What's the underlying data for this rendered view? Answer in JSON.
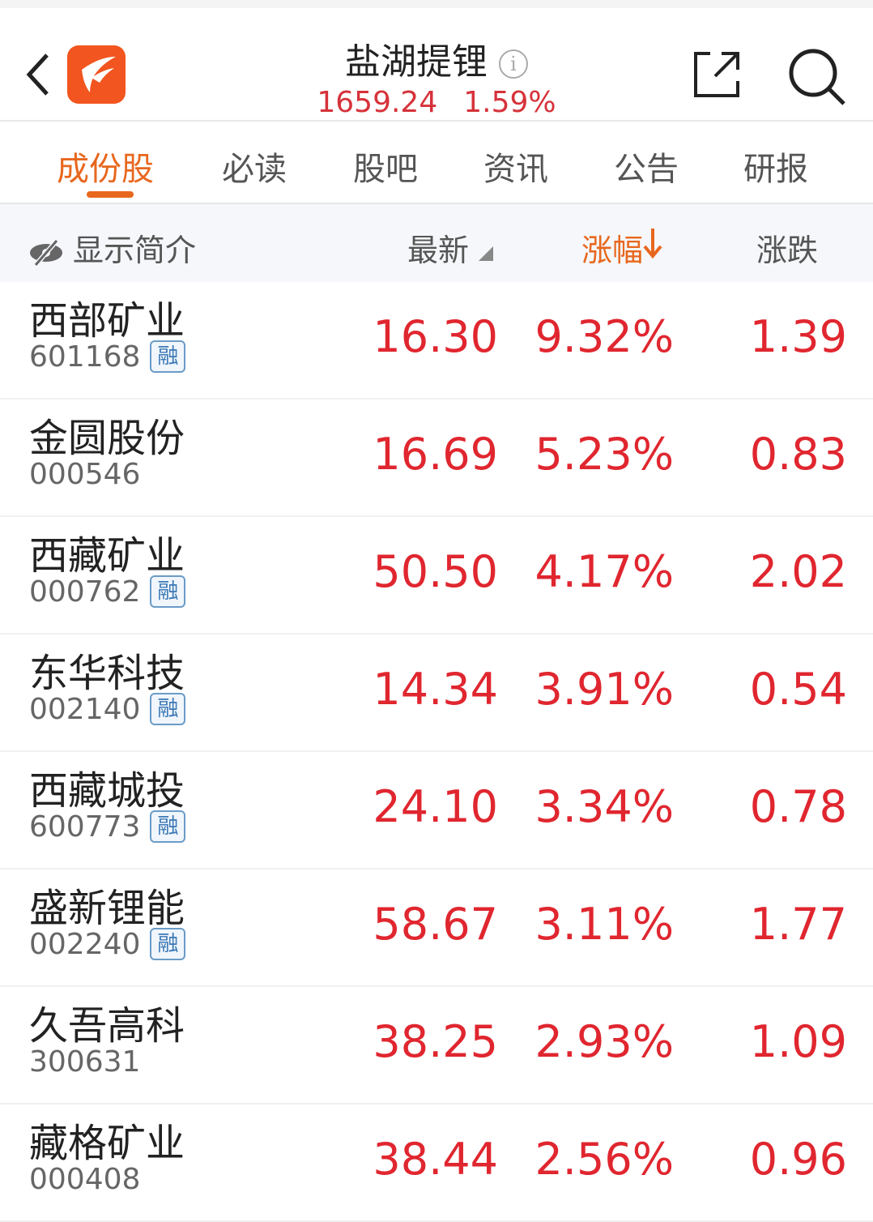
{
  "header": {
    "title": "盐湖提锂",
    "index_value": "1659.24",
    "index_change": "1.59%",
    "info_icon": "i"
  },
  "tabs": [
    "成份股",
    "必读",
    "股吧",
    "资讯",
    "公告",
    "研报"
  ],
  "columns": {
    "toggle": "显示简介",
    "latest": "最新",
    "change_pct": "涨幅",
    "change": "涨跌"
  },
  "badge_label": "融",
  "colors": {
    "accent": "#e8671e",
    "up": "#e0262f",
    "logo": "#f2551f"
  },
  "rows": [
    {
      "name": "西部矿业",
      "code": "601168",
      "margin": true,
      "price": "16.30",
      "pct": "9.32%",
      "chg": "1.39"
    },
    {
      "name": "金圆股份",
      "code": "000546",
      "margin": false,
      "price": "16.69",
      "pct": "5.23%",
      "chg": "0.83"
    },
    {
      "name": "西藏矿业",
      "code": "000762",
      "margin": true,
      "price": "50.50",
      "pct": "4.17%",
      "chg": "2.02"
    },
    {
      "name": "东华科技",
      "code": "002140",
      "margin": true,
      "price": "14.34",
      "pct": "3.91%",
      "chg": "0.54"
    },
    {
      "name": "西藏城投",
      "code": "600773",
      "margin": true,
      "price": "24.10",
      "pct": "3.34%",
      "chg": "0.78"
    },
    {
      "name": "盛新锂能",
      "code": "002240",
      "margin": true,
      "price": "58.67",
      "pct": "3.11%",
      "chg": "1.77"
    },
    {
      "name": "久吾高科",
      "code": "300631",
      "margin": false,
      "price": "38.25",
      "pct": "2.93%",
      "chg": "1.09"
    },
    {
      "name": "藏格矿业",
      "code": "000408",
      "margin": false,
      "price": "38.44",
      "pct": "2.56%",
      "chg": "0.96"
    }
  ]
}
